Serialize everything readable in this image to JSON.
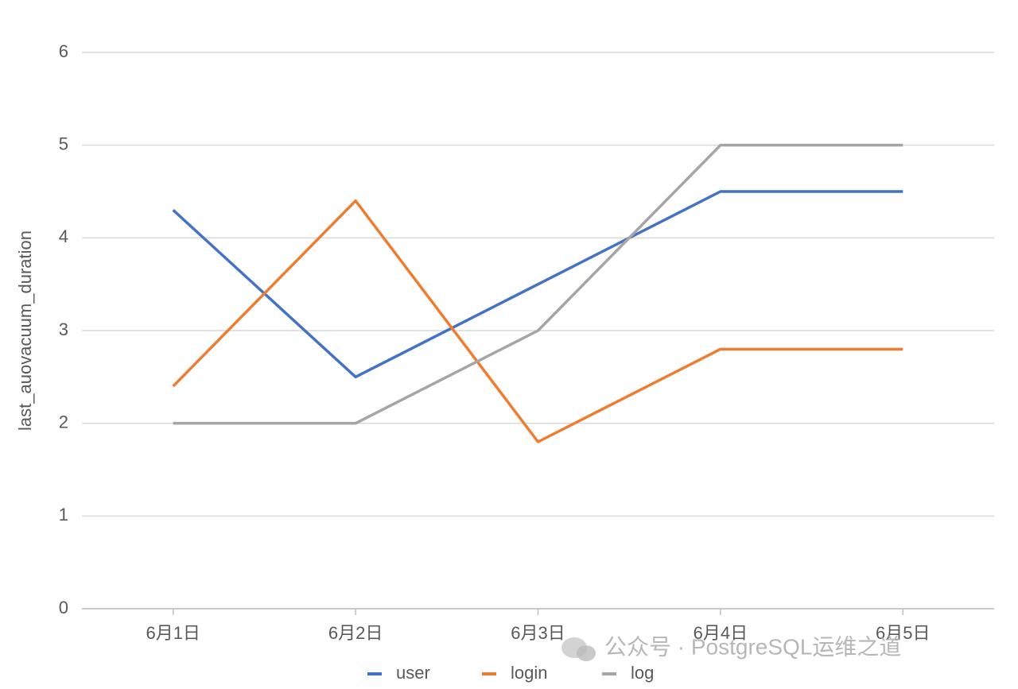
{
  "chart_data": {
    "type": "line",
    "y_label": "last_auovacuum_duration",
    "categories": [
      "6月1日",
      "6月2日",
      "6月3日",
      "6月4日",
      "6月5日"
    ],
    "series": [
      {
        "name": "user",
        "color": "#4472c4",
        "values": [
          4.3,
          2.5,
          3.5,
          4.5,
          4.5
        ]
      },
      {
        "name": "login",
        "color": "#ed7d31",
        "values": [
          2.4,
          4.4,
          1.8,
          2.8,
          2.8
        ]
      },
      {
        "name": "log",
        "color": "#a5a5a5",
        "values": [
          2,
          2,
          3,
          5,
          5
        ]
      }
    ],
    "ylim": [
      0,
      6
    ],
    "yticks": [
      0,
      1,
      2,
      3,
      4,
      5,
      6
    ],
    "grid": true,
    "legend": "bottom",
    "watermark": "公众号 · PostgreSQL运维之道"
  }
}
